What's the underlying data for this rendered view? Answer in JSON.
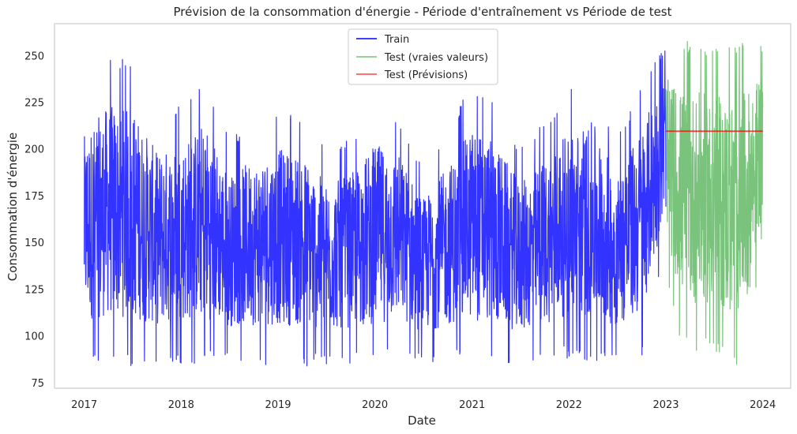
{
  "chart_data": {
    "type": "line",
    "title": "Prévision de la consommation d'énergie - Période d'entraînement vs Période de test",
    "xlabel": "Date",
    "ylabel": "Consommation d'énergie",
    "xlim": [
      "2016-09-11",
      "2024-04-15"
    ],
    "ylim": [
      72,
      267
    ],
    "x_ticks": [
      "2017",
      "2018",
      "2019",
      "2020",
      "2021",
      "2022",
      "2023",
      "2024"
    ],
    "y_ticks": [
      75,
      100,
      125,
      150,
      175,
      200,
      225,
      250
    ],
    "grid": false,
    "legend_position": "upper center",
    "series": [
      {
        "name": "Train",
        "color": "#0000ff",
        "x_range": [
          "2017-01-01",
          "2023-01-01"
        ],
        "note_approx": true,
        "envelope": [
          {
            "x": "2017-01-01",
            "min": 85,
            "max": 230
          },
          {
            "x": "2017-04-01",
            "min": 84,
            "max": 250
          },
          {
            "x": "2017-07-01",
            "min": 83,
            "max": 248
          },
          {
            "x": "2017-10-01",
            "min": 84,
            "max": 220
          },
          {
            "x": "2018-01-01",
            "min": 85,
            "max": 225
          },
          {
            "x": "2018-04-01",
            "min": 85,
            "max": 240
          },
          {
            "x": "2018-07-01",
            "min": 86,
            "max": 205
          },
          {
            "x": "2018-10-01",
            "min": 85,
            "max": 215
          },
          {
            "x": "2019-01-01",
            "min": 84,
            "max": 222
          },
          {
            "x": "2019-04-01",
            "min": 83,
            "max": 220
          },
          {
            "x": "2019-07-01",
            "min": 84,
            "max": 200
          },
          {
            "x": "2019-10-01",
            "min": 85,
            "max": 205
          },
          {
            "x": "2020-01-01",
            "min": 84,
            "max": 225
          },
          {
            "x": "2020-04-01",
            "min": 88,
            "max": 218
          },
          {
            "x": "2020-07-01",
            "min": 85,
            "max": 190
          },
          {
            "x": "2020-10-01",
            "min": 86,
            "max": 210
          },
          {
            "x": "2021-01-01",
            "min": 84,
            "max": 236
          },
          {
            "x": "2021-04-01",
            "min": 84,
            "max": 225
          },
          {
            "x": "2021-07-01",
            "min": 83,
            "max": 200
          },
          {
            "x": "2021-10-01",
            "min": 86,
            "max": 215
          },
          {
            "x": "2022-01-01",
            "min": 88,
            "max": 232
          },
          {
            "x": "2022-04-01",
            "min": 85,
            "max": 239
          },
          {
            "x": "2022-07-01",
            "min": 86,
            "max": 205
          },
          {
            "x": "2022-10-01",
            "min": 88,
            "max": 235
          },
          {
            "x": "2022-12-31",
            "min": 150,
            "max": 258
          }
        ]
      },
      {
        "name": "Test (vraies valeurs)",
        "color": "#4caf50",
        "x_range": [
          "2023-01-01",
          "2024-01-01"
        ],
        "note_approx": true,
        "envelope": [
          {
            "x": "2023-01-01",
            "min": 132,
            "max": 258
          },
          {
            "x": "2023-03-01",
            "min": 95,
            "max": 258
          },
          {
            "x": "2023-05-01",
            "min": 90,
            "max": 257
          },
          {
            "x": "2023-07-01",
            "min": 92,
            "max": 255
          },
          {
            "x": "2023-09-01",
            "min": 82,
            "max": 255
          },
          {
            "x": "2023-11-01",
            "min": 88,
            "max": 257
          },
          {
            "x": "2024-01-01",
            "min": 151,
            "max": 258
          }
        ]
      },
      {
        "name": "Test (Prévisions)",
        "color": "#ff0000",
        "x": [
          "2023-01-01",
          "2024-01-01"
        ],
        "y": [
          209.5,
          209.5
        ]
      }
    ]
  }
}
